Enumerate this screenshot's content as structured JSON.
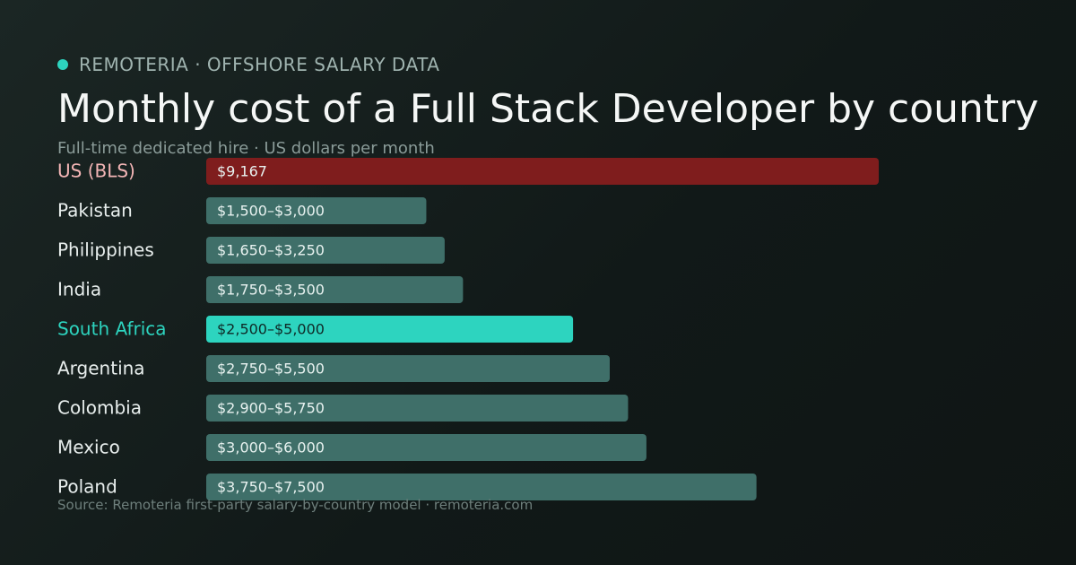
{
  "header": {
    "brand": "REMOTERIA · OFFSHORE SALARY DATA",
    "title": "Monthly cost of a Full Stack Developer by country",
    "subtitle": "Full-time dedicated hire · US dollars per month"
  },
  "footer": {
    "source": "Source: Remoteria first-party salary-by-country model · remoteria.com"
  },
  "colors": {
    "accent": "#2dd4bf",
    "us_bar": "#7f1d1d",
    "us_label": "#f4b6b6",
    "default_bar": "#3f6f69",
    "highlight_label": "#2dd4bf",
    "default_label": "#e8eeed",
    "bar_text_dark": "#0f2a27",
    "bar_text_light": "#e8f2f0"
  },
  "chart_data": {
    "type": "bar",
    "orientation": "horizontal",
    "unit": "USD per month",
    "xlim": [
      0,
      11000
    ],
    "grid": false,
    "categories": [
      "US (BLS)",
      "Pakistan",
      "Philippines",
      "India",
      "South Africa",
      "Argentina",
      "Colombia",
      "Mexico",
      "Poland"
    ],
    "value_labels": [
      "$9,167",
      "$1,500–$3,000",
      "$1,650–$3,250",
      "$1,750–$3,500",
      "$2,500–$5,000",
      "$2,750–$5,500",
      "$2,900–$5,750",
      "$3,000–$6,000",
      "$3,750–$7,500"
    ],
    "values": [
      9167,
      3000,
      3250,
      3500,
      5000,
      5500,
      5750,
      6000,
      7500
    ],
    "ranges": [
      [
        9167,
        9167
      ],
      [
        1500,
        3000
      ],
      [
        1650,
        3250
      ],
      [
        1750,
        3500
      ],
      [
        2500,
        5000
      ],
      [
        2750,
        5500
      ],
      [
        2900,
        5750
      ],
      [
        3000,
        6000
      ],
      [
        3750,
        7500
      ]
    ],
    "highlight": [
      "default",
      "default",
      "default",
      "default",
      "accent",
      "default",
      "default",
      "default",
      "default"
    ],
    "baseline": [
      "us",
      "",
      "",
      "",
      "",
      "",
      "",
      "",
      ""
    ]
  }
}
